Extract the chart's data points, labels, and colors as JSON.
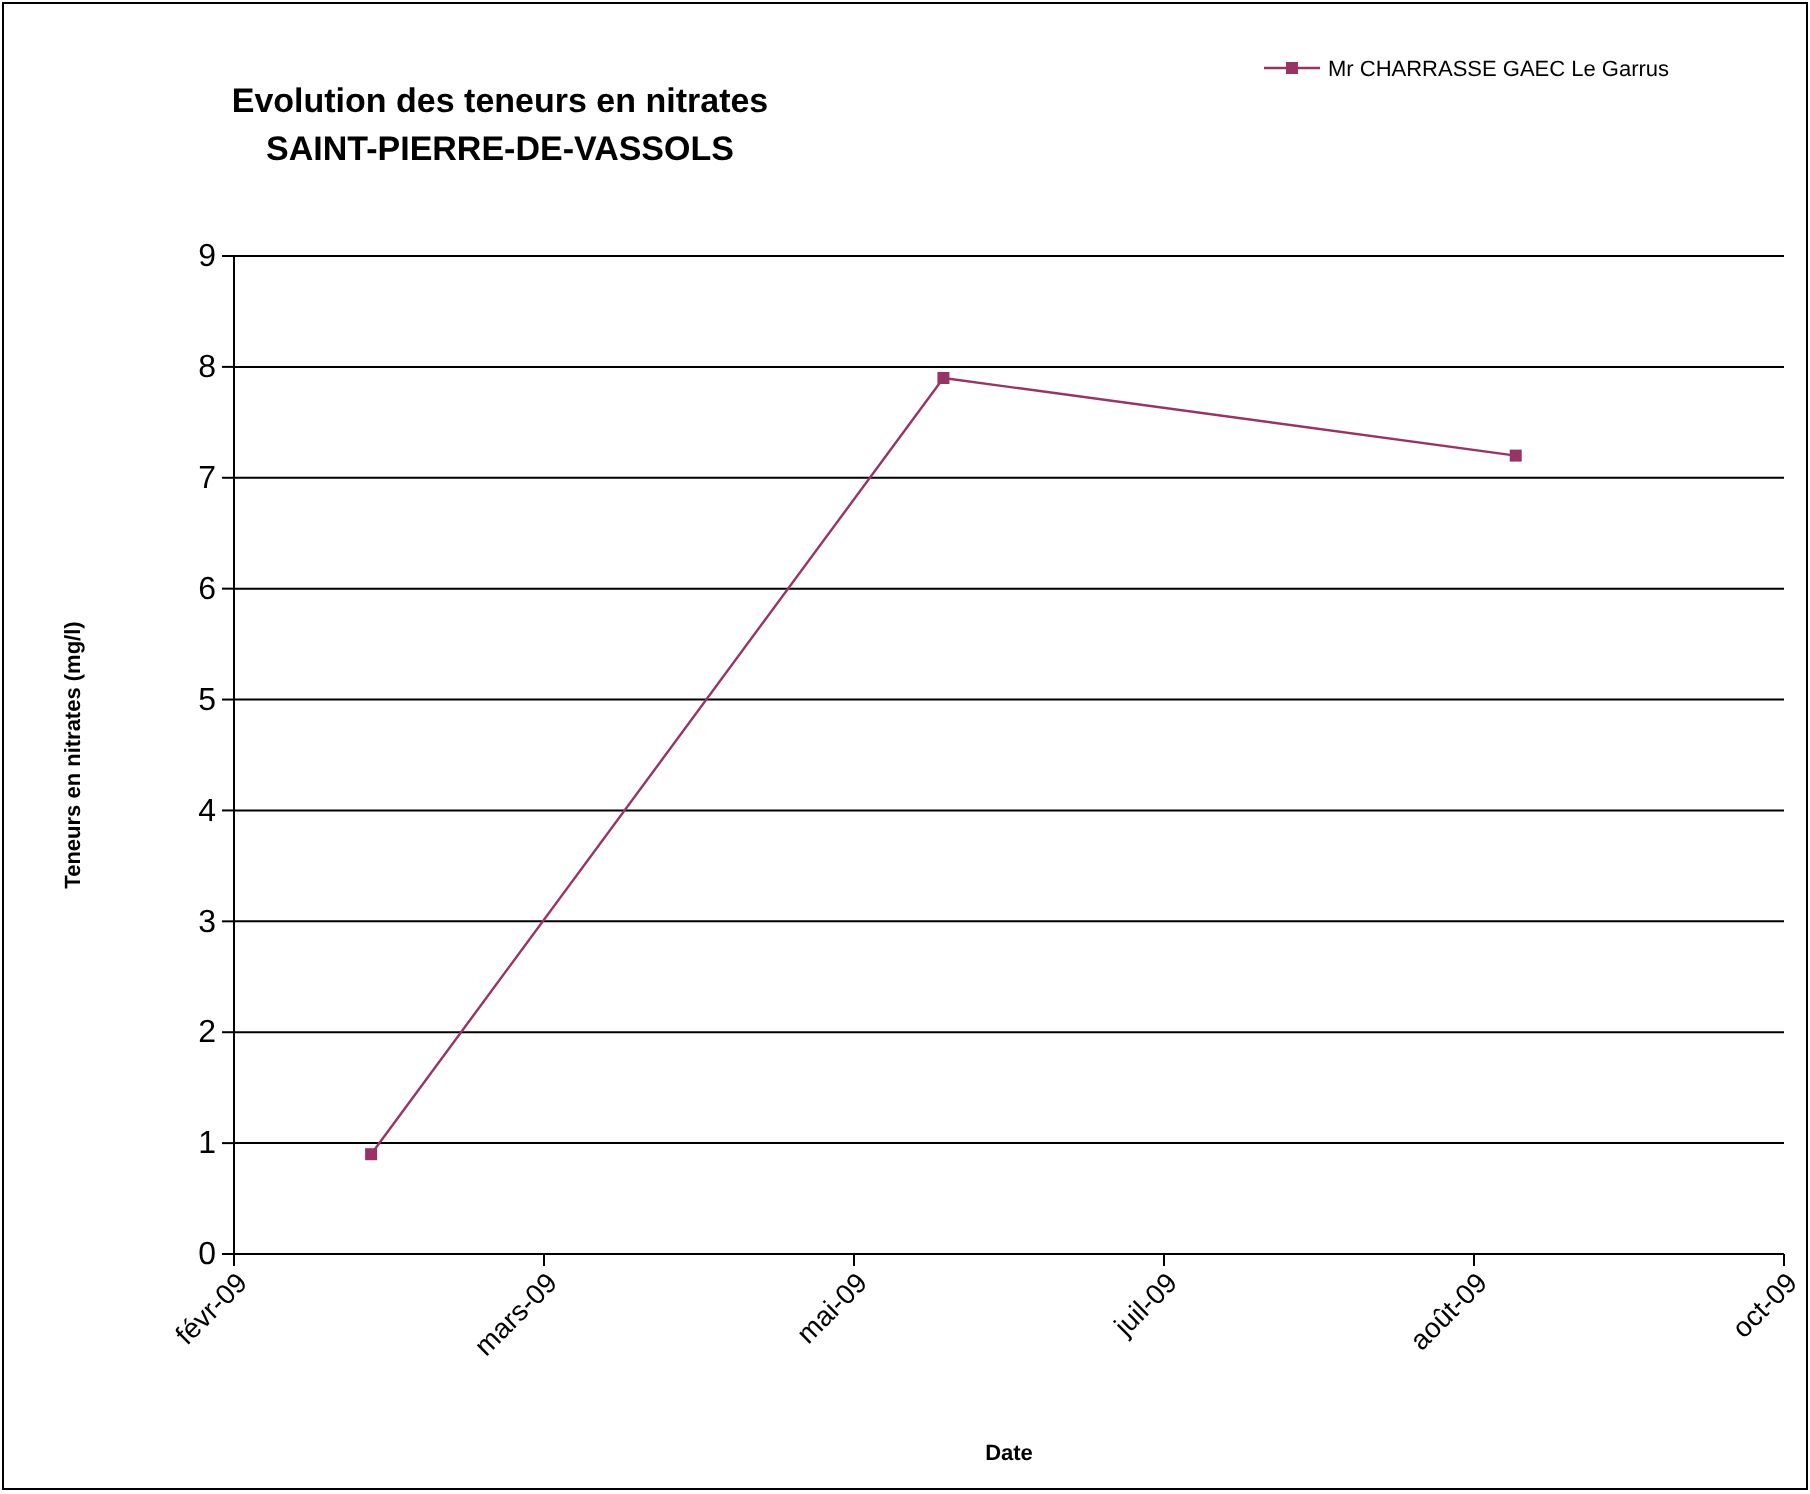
{
  "chart_data": {
    "type": "line",
    "title": "Evolution des teneurs en nitrates\nSAINT-PIERRE-DE-VASSOLS",
    "xlabel": "Date",
    "ylabel": "Teneurs en nitrates (mg/l)",
    "x": [
      "2009-02-24",
      "2009-05-31",
      "2009-09-04"
    ],
    "series": [
      {
        "name": "Mr CHARRASSE GAEC Le Garrus",
        "color": "#993366",
        "values": [
          0.9,
          7.9,
          7.2
        ]
      }
    ],
    "xlim": [
      "2009-02-01",
      "2009-10-19"
    ],
    "xticks": [
      {
        "value": "2009-02-01",
        "label": "févr-09"
      },
      {
        "value": "2009-03-25",
        "label": "mars-09"
      },
      {
        "value": "2009-05-16",
        "label": "mai-09"
      },
      {
        "value": "2009-07-07",
        "label": "juil-09"
      },
      {
        "value": "2009-08-28",
        "label": "août-09"
      },
      {
        "value": "2009-10-19",
        "label": "oct-09"
      }
    ],
    "ylim": [
      0,
      9
    ],
    "yticks": [
      0,
      1,
      2,
      3,
      4,
      5,
      6,
      7,
      8,
      9
    ],
    "grid": "y",
    "legend": "top right",
    "marker": "square",
    "line_style": "solid"
  }
}
